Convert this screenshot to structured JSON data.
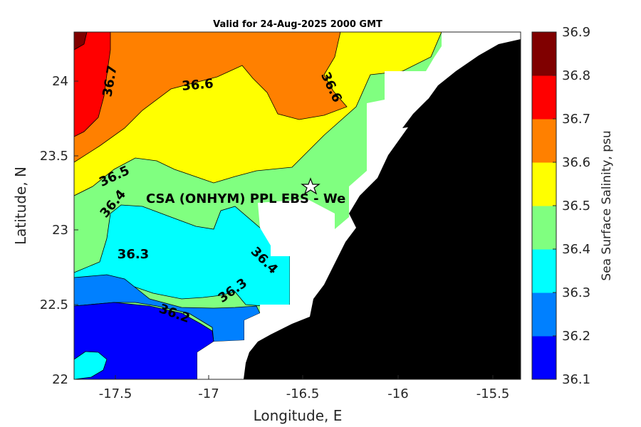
{
  "title": "Valid for 24-Aug-2025 2000 GMT",
  "xlabel": "Longitude, E",
  "ylabel": "Latitude, N",
  "colorbar_label": "Sea Surface Salinity, psu",
  "x_ticks": [
    "-17.5",
    "-17",
    "-16.5",
    "-16",
    "-15.5"
  ],
  "y_ticks": [
    "22",
    "22.5",
    "23",
    "23.5",
    "24"
  ],
  "colorbar_ticks": [
    "36.1",
    "36.2",
    "36.3",
    "36.4",
    "36.5",
    "36.6",
    "36.7",
    "36.8",
    "36.9"
  ],
  "colorbar_colors": [
    "#0000ff",
    "#0080ff",
    "#00ffff",
    "#80ff80",
    "#ffff00",
    "#ff8000",
    "#ff0000",
    "#800000"
  ],
  "contour_labels": [
    "36.7",
    "36.6",
    "36.6",
    "36.5",
    "36.4",
    "36.3",
    "36.4",
    "36.3",
    "36.2"
  ],
  "site_label": "CSA (ONHYM) PPL EBS  - We",
  "colors": {
    "land": "#000000",
    "nodata": "#ffffff"
  }
}
